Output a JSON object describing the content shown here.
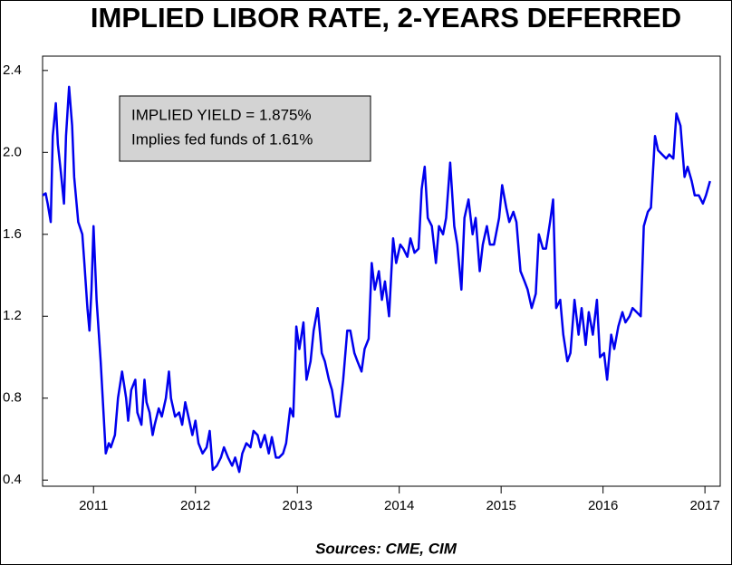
{
  "chart_data": {
    "type": "line",
    "title": "IMPLIED LIBOR RATE, 2-YEARS DEFERRED",
    "annotations": [
      "IMPLIED YIELD = 1.875%",
      "Implies fed funds of 1.61%"
    ],
    "source": "Sources:  CME, CIM",
    "color": "#0000ee",
    "xlim": [
      2010.5,
      2017.15
    ],
    "xticks": [
      2011,
      2012,
      2013,
      2014,
      2015,
      2016,
      2017
    ],
    "ylim": [
      0.37,
      2.47
    ],
    "yticks": [
      0.4,
      0.8,
      1.2,
      1.6,
      {
        "value": 2,
        "label": "2.0"
      },
      2.4
    ],
    "x": [
      2010.5,
      2010.53,
      2010.55,
      2010.58,
      2010.6,
      2010.63,
      2010.65,
      2010.68,
      2010.71,
      2010.73,
      2010.76,
      2010.79,
      2010.81,
      2010.85,
      2010.89,
      2010.91,
      2010.94,
      2010.96,
      2010.98,
      2011.0,
      2011.03,
      2011.07,
      2011.09,
      2011.12,
      2011.15,
      2011.17,
      2011.21,
      2011.24,
      2011.28,
      2011.32,
      2011.34,
      2011.37,
      2011.41,
      2011.43,
      2011.47,
      2011.5,
      2011.52,
      2011.55,
      2011.58,
      2011.6,
      2011.64,
      2011.67,
      2011.71,
      2011.74,
      2011.76,
      2011.8,
      2011.84,
      2011.87,
      2011.9,
      2011.94,
      2011.97,
      2012.0,
      2012.03,
      2012.07,
      2012.11,
      2012.14,
      2012.17,
      2012.21,
      2012.25,
      2012.28,
      2012.32,
      2012.36,
      2012.39,
      2012.43,
      2012.46,
      2012.5,
      2012.54,
      2012.57,
      2012.61,
      2012.64,
      2012.68,
      2012.72,
      2012.75,
      2012.79,
      2012.82,
      2012.86,
      2012.89,
      2012.93,
      2012.96,
      2012.99,
      2013.02,
      2013.06,
      2013.09,
      2013.13,
      2013.16,
      2013.2,
      2013.24,
      2013.27,
      2013.31,
      2013.34,
      2013.38,
      2013.41,
      2013.45,
      2013.49,
      2013.52,
      2013.56,
      2013.59,
      2013.63,
      2013.66,
      2013.7,
      2013.73,
      2013.76,
      2013.8,
      2013.83,
      2013.86,
      2013.9,
      2013.94,
      2013.97,
      2014.01,
      2014.04,
      2014.08,
      2014.11,
      2014.15,
      2014.19,
      2014.22,
      2014.25,
      2014.28,
      2014.32,
      2014.36,
      2014.39,
      2014.43,
      2014.46,
      2014.5,
      2014.54,
      2014.57,
      2014.61,
      2014.64,
      2014.68,
      2014.72,
      2014.75,
      2014.79,
      2014.82,
      2014.86,
      2014.89,
      2014.93,
      2014.98,
      2015.01,
      2015.05,
      2015.08,
      2015.12,
      2015.15,
      2015.19,
      2015.23,
      2015.26,
      2015.3,
      2015.34,
      2015.37,
      2015.41,
      2015.44,
      2015.48,
      2015.51,
      2015.54,
      2015.58,
      2015.61,
      2015.65,
      2015.68,
      2015.72,
      2015.76,
      2015.79,
      2015.83,
      2015.86,
      2015.9,
      2015.94,
      2015.97,
      2016.01,
      2016.04,
      2016.08,
      2016.11,
      2016.15,
      2016.19,
      2016.22,
      2016.26,
      2016.29,
      2016.33,
      2016.37,
      2016.4,
      2016.44,
      2016.47,
      2016.51,
      2016.54,
      2016.58,
      2016.62,
      2016.65,
      2016.69,
      2016.72,
      2016.76,
      2016.8,
      2016.83,
      2016.87,
      2016.9,
      2016.94,
      2016.98,
      2017.01,
      2017.05
    ],
    "values": [
      1.79,
      1.8,
      1.75,
      1.66,
      2.08,
      2.24,
      2.04,
      1.9,
      1.75,
      2.08,
      2.32,
      2.13,
      1.88,
      1.66,
      1.6,
      1.46,
      1.24,
      1.13,
      1.33,
      1.64,
      1.28,
      0.98,
      0.8,
      0.53,
      0.58,
      0.56,
      0.62,
      0.8,
      0.93,
      0.8,
      0.69,
      0.84,
      0.89,
      0.73,
      0.67,
      0.89,
      0.78,
      0.73,
      0.62,
      0.67,
      0.75,
      0.71,
      0.8,
      0.93,
      0.8,
      0.71,
      0.73,
      0.67,
      0.78,
      0.69,
      0.62,
      0.69,
      0.58,
      0.53,
      0.56,
      0.64,
      0.45,
      0.47,
      0.51,
      0.56,
      0.51,
      0.47,
      0.51,
      0.44,
      0.53,
      0.58,
      0.56,
      0.64,
      0.62,
      0.56,
      0.62,
      0.53,
      0.61,
      0.51,
      0.51,
      0.53,
      0.58,
      0.75,
      0.71,
      1.15,
      1.04,
      1.17,
      0.89,
      0.98,
      1.13,
      1.24,
      1.02,
      0.98,
      0.89,
      0.84,
      0.71,
      0.71,
      0.89,
      1.13,
      1.13,
      1.02,
      0.98,
      0.93,
      1.04,
      1.09,
      1.46,
      1.33,
      1.42,
      1.28,
      1.37,
      1.2,
      1.58,
      1.46,
      1.55,
      1.53,
      1.49,
      1.58,
      1.51,
      1.53,
      1.82,
      1.93,
      1.68,
      1.64,
      1.46,
      1.64,
      1.6,
      1.68,
      1.95,
      1.64,
      1.55,
      1.33,
      1.68,
      1.77,
      1.6,
      1.68,
      1.42,
      1.55,
      1.64,
      1.55,
      1.55,
      1.68,
      1.84,
      1.73,
      1.66,
      1.71,
      1.66,
      1.42,
      1.37,
      1.33,
      1.24,
      1.31,
      1.6,
      1.53,
      1.53,
      1.66,
      1.77,
      1.24,
      1.28,
      1.11,
      0.98,
      1.02,
      1.28,
      1.11,
      1.24,
      1.06,
      1.22,
      1.11,
      1.28,
      1.0,
      1.02,
      0.89,
      1.11,
      1.04,
      1.15,
      1.22,
      1.17,
      1.2,
      1.24,
      1.22,
      1.2,
      1.64,
      1.71,
      1.73,
      2.08,
      2.01,
      1.99,
      1.97,
      1.99,
      1.97,
      2.19,
      2.13,
      1.88,
      1.93,
      1.86,
      1.79,
      1.79,
      1.75,
      1.79,
      1.86
    ]
  }
}
